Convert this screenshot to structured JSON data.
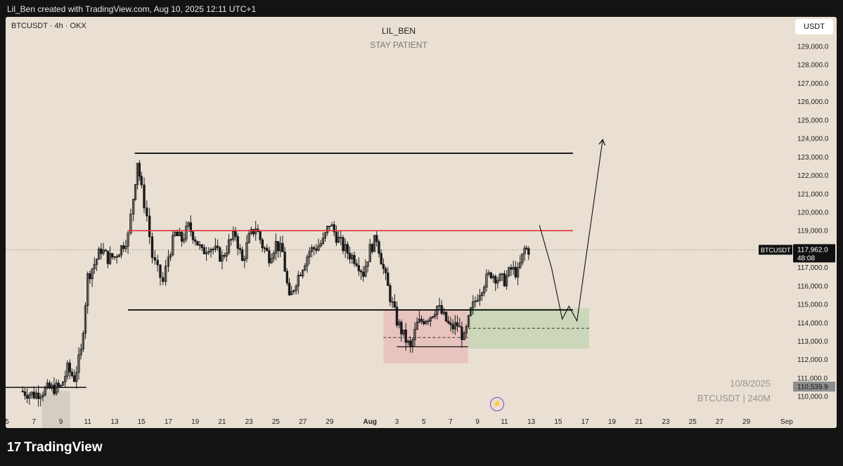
{
  "header": {
    "caption": "Lil_Ben created with TradingView.com, Aug 10, 2025 12:11 UTC+1"
  },
  "symbol_info": "BTCUSDT · 4h · OKX",
  "author": "LIL_BEN",
  "subtitle": "STAY PATIENT",
  "currency_button": "USDT",
  "watermark": {
    "date": "10/8/2025",
    "symbol": "BTCUSDT | 240M"
  },
  "footer": {
    "logo_text": "TradingView",
    "logo_mark": "17"
  },
  "colors": {
    "background": "#e9e0d3",
    "frame": "#131313",
    "candle": "#1a1a1a",
    "resistance": "#e0333a",
    "demand_zone": "#c9d6b7",
    "supply_zone": "#e8c1bd"
  },
  "chart_data": {
    "type": "candlestick",
    "y_axis": {
      "range": [
        109700,
        129600
      ],
      "ticks": [
        129000,
        128000,
        127000,
        126000,
        125000,
        124000,
        123000,
        122000,
        121000,
        120000,
        119000,
        118000,
        117000,
        116000,
        115000,
        114000,
        113000,
        112000,
        111000,
        110000
      ],
      "tick_labels": [
        "129,000.0",
        "128,000.0",
        "127,000.0",
        "126,000.0",
        "125,000.0",
        "124,000.0",
        "123,000.0",
        "122,000.0",
        "121,000.0",
        "120,000.0",
        "119,000.0",
        "118,000.0",
        "117,000.0",
        "116,000.0",
        "115,000.0",
        "114,000.0",
        "113,000.0",
        "112,000.0",
        "111,000.0",
        "110,000.0"
      ]
    },
    "x_axis": {
      "labels": [
        "5",
        "7",
        "9",
        "11",
        "13",
        "15",
        "17",
        "19",
        "21",
        "23",
        "25",
        "27",
        "29",
        "Aug",
        "3",
        "5",
        "7",
        "9",
        "11",
        "13",
        "15",
        "17",
        "19",
        "21",
        "23",
        "25",
        "27",
        "29",
        "Sep"
      ],
      "day_index": [
        0,
        2,
        4,
        6,
        8,
        10,
        12,
        14,
        16,
        18,
        20,
        22,
        24,
        27,
        29,
        31,
        33,
        35,
        37,
        39,
        41,
        43,
        45,
        47,
        49,
        51,
        53,
        55,
        58
      ]
    },
    "last_price": {
      "symbol": "BTCUSDT",
      "value": 117962.0,
      "label": "117,962.0",
      "countdown": "48:08"
    },
    "marked_price": {
      "value": 110539.9,
      "label": "110,539.9"
    },
    "price_path": [
      {
        "day": 1.0,
        "price": 110300
      },
      {
        "day": 2.0,
        "price": 110100
      },
      {
        "day": 3.0,
        "price": 110400
      },
      {
        "day": 4.0,
        "price": 110500
      },
      {
        "day": 4.5,
        "price": 111500
      },
      {
        "day": 5.0,
        "price": 111000
      },
      {
        "day": 5.5,
        "price": 112400
      },
      {
        "day": 6.0,
        "price": 116500
      },
      {
        "day": 6.5,
        "price": 117200
      },
      {
        "day": 7.0,
        "price": 118000
      },
      {
        "day": 7.5,
        "price": 117500
      },
      {
        "day": 8.0,
        "price": 117600
      },
      {
        "day": 8.5,
        "price": 118100
      },
      {
        "day": 9.0,
        "price": 118700
      },
      {
        "day": 9.4,
        "price": 120800
      },
      {
        "day": 9.7,
        "price": 122800
      },
      {
        "day": 10.0,
        "price": 121200
      },
      {
        "day": 10.4,
        "price": 119800
      },
      {
        "day": 10.8,
        "price": 117600
      },
      {
        "day": 11.2,
        "price": 116800
      },
      {
        "day": 11.6,
        "price": 116200
      },
      {
        "day": 12.0,
        "price": 117600
      },
      {
        "day": 12.5,
        "price": 118800
      },
      {
        "day": 13.0,
        "price": 118500
      },
      {
        "day": 13.5,
        "price": 119200
      },
      {
        "day": 14.0,
        "price": 118600
      },
      {
        "day": 14.5,
        "price": 117800
      },
      {
        "day": 15.0,
        "price": 118200
      },
      {
        "day": 15.5,
        "price": 117900
      },
      {
        "day": 16.0,
        "price": 117500
      },
      {
        "day": 16.5,
        "price": 118300
      },
      {
        "day": 17.0,
        "price": 118800
      },
      {
        "day": 17.5,
        "price": 117300
      },
      {
        "day": 18.0,
        "price": 118600
      },
      {
        "day": 18.5,
        "price": 119200
      },
      {
        "day": 19.0,
        "price": 118200
      },
      {
        "day": 19.5,
        "price": 117600
      },
      {
        "day": 20.0,
        "price": 118300
      },
      {
        "day": 20.5,
        "price": 117800
      },
      {
        "day": 21.0,
        "price": 115200
      },
      {
        "day": 21.5,
        "price": 116300
      },
      {
        "day": 22.0,
        "price": 117100
      },
      {
        "day": 22.5,
        "price": 117900
      },
      {
        "day": 23.0,
        "price": 118100
      },
      {
        "day": 23.5,
        "price": 118400
      },
      {
        "day": 24.0,
        "price": 119400
      },
      {
        "day": 24.5,
        "price": 118700
      },
      {
        "day": 25.0,
        "price": 118100
      },
      {
        "day": 25.5,
        "price": 117700
      },
      {
        "day": 26.0,
        "price": 117400
      },
      {
        "day": 26.5,
        "price": 116700
      },
      {
        "day": 27.0,
        "price": 118000
      },
      {
        "day": 27.5,
        "price": 118600
      },
      {
        "day": 28.0,
        "price": 116900
      },
      {
        "day": 28.5,
        "price": 115400
      },
      {
        "day": 29.0,
        "price": 114100
      },
      {
        "day": 29.5,
        "price": 113300
      },
      {
        "day": 30.0,
        "price": 112600
      },
      {
        "day": 30.5,
        "price": 113900
      },
      {
        "day": 31.0,
        "price": 114200
      },
      {
        "day": 31.5,
        "price": 114400
      },
      {
        "day": 32.0,
        "price": 114900
      },
      {
        "day": 32.5,
        "price": 114300
      },
      {
        "day": 33.0,
        "price": 113700
      },
      {
        "day": 33.5,
        "price": 113900
      },
      {
        "day": 34.0,
        "price": 113100
      },
      {
        "day": 34.5,
        "price": 114600
      },
      {
        "day": 35.0,
        "price": 115500
      },
      {
        "day": 35.5,
        "price": 116200
      },
      {
        "day": 36.0,
        "price": 116700
      },
      {
        "day": 36.5,
        "price": 116400
      },
      {
        "day": 37.0,
        "price": 116300
      },
      {
        "day": 37.5,
        "price": 116900
      },
      {
        "day": 38.0,
        "price": 116700
      },
      {
        "day": 38.5,
        "price": 118000
      },
      {
        "day": 38.8,
        "price": 117962
      }
    ],
    "annotations": {
      "range_high": {
        "price": 123200,
        "from_day": 9.5,
        "to_day": 42.1
      },
      "resistance": {
        "price": 119000,
        "from_day": 9.0,
        "to_day": 42.1
      },
      "range_low": {
        "price": 114700,
        "from_day": 9.0,
        "to_day": 42.1
      },
      "supply_zone": {
        "from_day": 28.0,
        "to_day": 34.3,
        "top": 114700,
        "bottom": 111800
      },
      "supply_mid": {
        "price": 113200,
        "from_day": 28.0,
        "to_day": 34.3
      },
      "demand_zone": {
        "from_day": 34.3,
        "to_day": 43.3,
        "top": 114800,
        "bottom": 112600
      },
      "demand_mid": {
        "price": 113700,
        "from_day": 34.3,
        "to_day": 43.3
      },
      "box_low": {
        "price": 112700,
        "from_day": 29.0,
        "to_day": 34.3
      },
      "left_base": {
        "price": 110500,
        "from_day": -0.2,
        "to_day": 5.9
      },
      "projection": [
        {
          "day": 39.6,
          "price": 119300
        },
        {
          "day": 40.5,
          "price": 117000
        },
        {
          "day": 41.3,
          "price": 114200
        },
        {
          "day": 41.8,
          "price": 114900
        },
        {
          "day": 42.4,
          "price": 114100
        },
        {
          "day": 44.3,
          "price": 123900
        }
      ]
    }
  }
}
